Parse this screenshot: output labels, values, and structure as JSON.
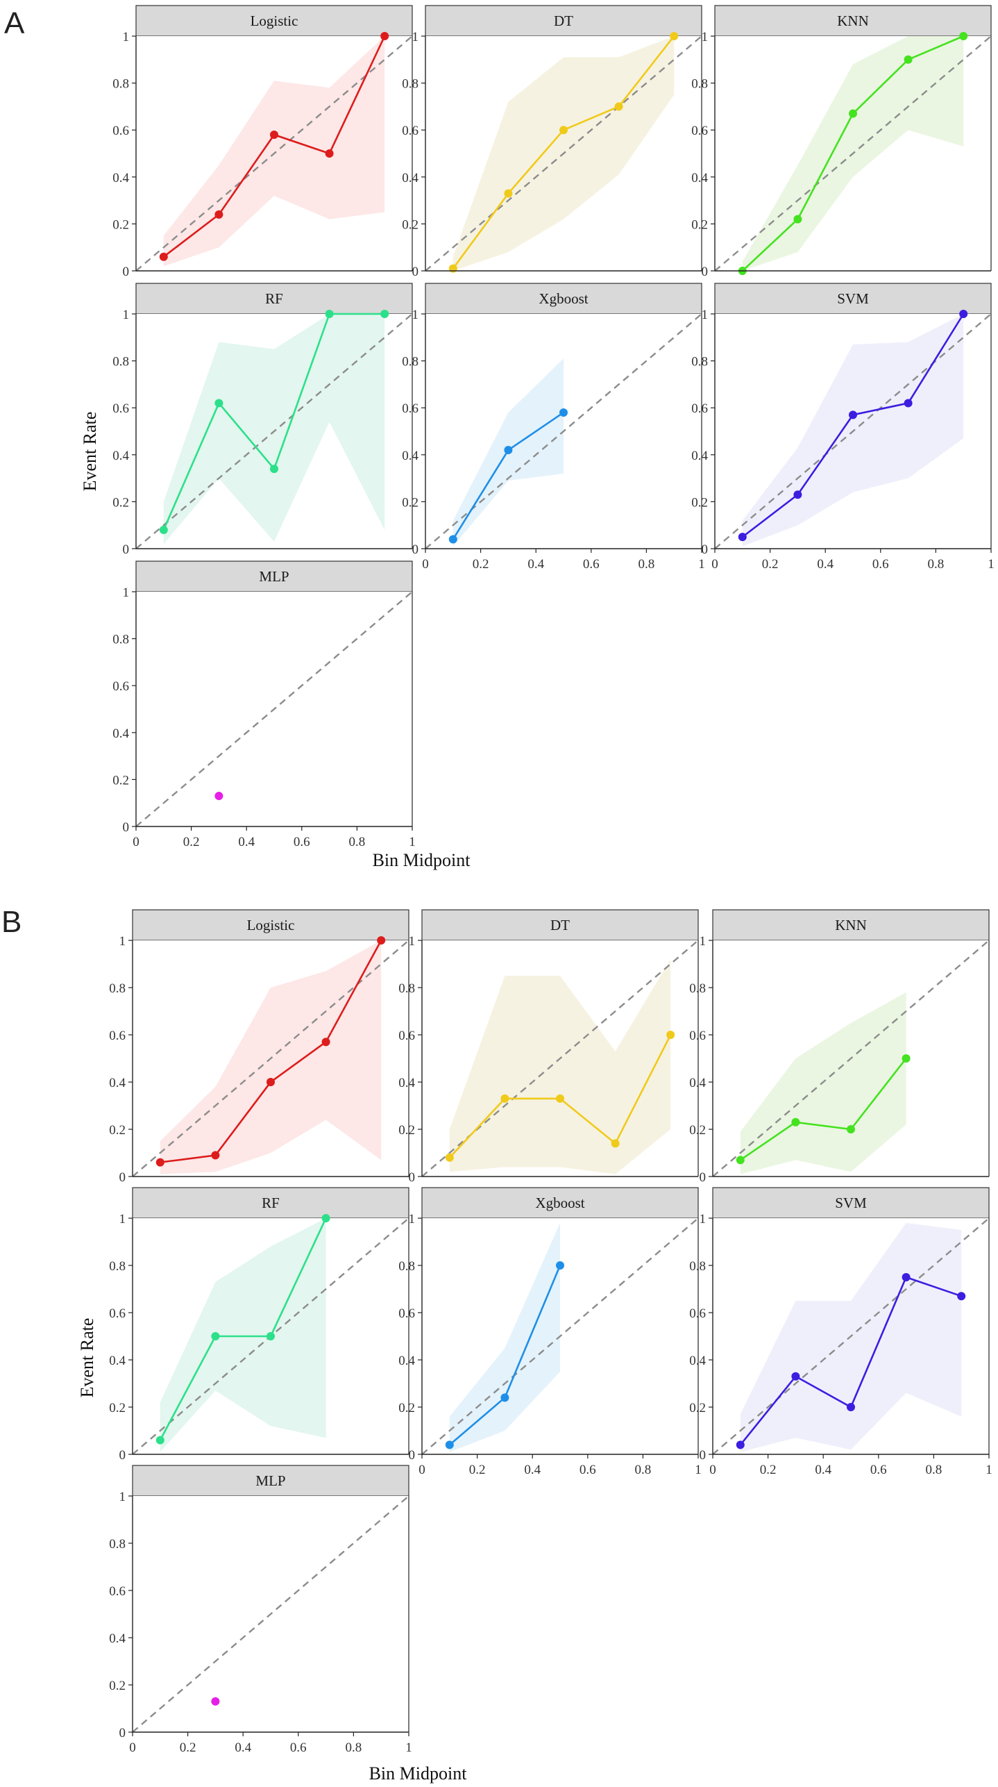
{
  "chart_data": [
    {
      "type": "line",
      "panel_label": "A",
      "xlabel": "Bin Midpoint",
      "ylabel": "Event Rate",
      "xlim": [
        0,
        1
      ],
      "ylim": [
        0,
        1
      ],
      "xticks": [
        "0",
        "0.2",
        "0.4",
        "0.6",
        "0.8",
        "1"
      ],
      "yticks": [
        "0",
        "0.2",
        "0.4",
        "0.6",
        "0.8",
        "1"
      ],
      "reference_line": "diagonal dashed y = x",
      "facets": [
        {
          "name": "Logistic",
          "color": "#dd1c1c",
          "band_color": "#fde3e3",
          "x": [
            0.1,
            0.3,
            0.5,
            0.7,
            0.9
          ],
          "y": [
            0.06,
            0.24,
            0.58,
            0.5,
            1.0
          ],
          "lower": [
            0.02,
            0.1,
            0.32,
            0.22,
            0.25
          ],
          "upper": [
            0.15,
            0.45,
            0.81,
            0.78,
            1.0
          ]
        },
        {
          "name": "DT",
          "color": "#f0ca1a",
          "band_color": "#f5f0dc",
          "x": [
            0.1,
            0.3,
            0.5,
            0.7,
            0.9
          ],
          "y": [
            0.01,
            0.33,
            0.6,
            0.7,
            1.0
          ],
          "lower": [
            0.0,
            0.08,
            0.22,
            0.41,
            0.75
          ],
          "upper": [
            0.06,
            0.72,
            0.91,
            0.91,
            1.0
          ]
        },
        {
          "name": "KNN",
          "color": "#44e21f",
          "band_color": "#e6f4dc",
          "x": [
            0.1,
            0.3,
            0.5,
            0.7,
            0.9
          ],
          "y": [
            0.0,
            0.22,
            0.67,
            0.9,
            1.0
          ],
          "lower": [
            0.0,
            0.08,
            0.4,
            0.6,
            0.53
          ],
          "upper": [
            0.04,
            0.45,
            0.88,
            1.0,
            1.0
          ]
        },
        {
          "name": "RF",
          "color": "#2ce08a",
          "band_color": "#def4ec",
          "x": [
            0.1,
            0.3,
            0.5,
            0.7,
            0.9
          ],
          "y": [
            0.08,
            0.62,
            0.34,
            1.0,
            1.0
          ],
          "lower": [
            0.02,
            0.3,
            0.03,
            0.54,
            0.08
          ],
          "upper": [
            0.2,
            0.88,
            0.85,
            1.0,
            1.0
          ]
        },
        {
          "name": "Xgboost",
          "color": "#1e8fe8",
          "band_color": "#dff0fa",
          "x": [
            0.1,
            0.3,
            0.5
          ],
          "y": [
            0.04,
            0.42,
            0.58
          ],
          "lower": [
            0.01,
            0.29,
            0.32
          ],
          "upper": [
            0.12,
            0.58,
            0.81
          ]
        },
        {
          "name": "SVM",
          "color": "#3b1ee0",
          "band_color": "#ececfb",
          "x": [
            0.1,
            0.3,
            0.5,
            0.7,
            0.9
          ],
          "y": [
            0.05,
            0.23,
            0.57,
            0.62,
            1.0
          ],
          "lower": [
            0.01,
            0.1,
            0.24,
            0.3,
            0.47
          ],
          "upper": [
            0.12,
            0.43,
            0.87,
            0.88,
            1.0
          ]
        },
        {
          "name": "MLP",
          "color": "#e61ee6",
          "band_color": "#fbe3fb",
          "x": [
            0.3
          ],
          "y": [
            0.13
          ],
          "lower": [],
          "upper": []
        }
      ]
    },
    {
      "type": "line",
      "panel_label": "B",
      "xlabel": "Bin Midpoint",
      "ylabel": "Event Rate",
      "xlim": [
        0,
        1
      ],
      "ylim": [
        0,
        1
      ],
      "xticks": [
        "0",
        "0.2",
        "0.4",
        "0.6",
        "0.8",
        "1"
      ],
      "yticks": [
        "0",
        "0.2",
        "0.4",
        "0.6",
        "0.8",
        "1"
      ],
      "reference_line": "diagonal dashed y = x",
      "facets": [
        {
          "name": "Logistic",
          "color": "#dd1c1c",
          "band_color": "#fde3e3",
          "x": [
            0.1,
            0.3,
            0.5,
            0.7,
            0.9
          ],
          "y": [
            0.06,
            0.09,
            0.4,
            0.57,
            1.0
          ],
          "lower": [
            0.01,
            0.02,
            0.1,
            0.24,
            0.07
          ],
          "upper": [
            0.15,
            0.38,
            0.8,
            0.87,
            1.0
          ]
        },
        {
          "name": "DT",
          "color": "#f0ca1a",
          "band_color": "#f5f0dc",
          "x": [
            0.1,
            0.3,
            0.5,
            0.7,
            0.9
          ],
          "y": [
            0.08,
            0.33,
            0.33,
            0.14,
            0.6
          ],
          "lower": [
            0.02,
            0.04,
            0.04,
            0.01,
            0.2
          ],
          "upper": [
            0.2,
            0.85,
            0.85,
            0.53,
            0.92
          ]
        },
        {
          "name": "KNN",
          "color": "#44e21f",
          "band_color": "#e6f4dc",
          "x": [
            0.1,
            0.3,
            0.5,
            0.7
          ],
          "y": [
            0.07,
            0.23,
            0.2,
            0.5
          ],
          "lower": [
            0.01,
            0.07,
            0.02,
            0.22
          ],
          "upper": [
            0.19,
            0.5,
            0.65,
            0.78
          ]
        },
        {
          "name": "RF",
          "color": "#2ce08a",
          "band_color": "#def4ec",
          "x": [
            0.1,
            0.3,
            0.5,
            0.7
          ],
          "y": [
            0.06,
            0.5,
            0.5,
            1.0
          ],
          "lower": [
            0.01,
            0.27,
            0.12,
            0.07
          ],
          "upper": [
            0.22,
            0.73,
            0.88,
            1.0
          ]
        },
        {
          "name": "Xgboost",
          "color": "#1e8fe8",
          "band_color": "#dff0fa",
          "x": [
            0.1,
            0.3,
            0.5
          ],
          "y": [
            0.04,
            0.24,
            0.8
          ],
          "lower": [
            0.01,
            0.1,
            0.35
          ],
          "upper": [
            0.16,
            0.45,
            0.98
          ]
        },
        {
          "name": "SVM",
          "color": "#3b1ee0",
          "band_color": "#ececfb",
          "x": [
            0.1,
            0.3,
            0.5,
            0.7,
            0.9
          ],
          "y": [
            0.04,
            0.33,
            0.2,
            0.75,
            0.67
          ],
          "lower": [
            0.01,
            0.07,
            0.02,
            0.26,
            0.16
          ],
          "upper": [
            0.17,
            0.65,
            0.65,
            0.98,
            0.95
          ]
        },
        {
          "name": "MLP",
          "color": "#e61ee6",
          "band_color": "#fbe3fb",
          "x": [
            0.3
          ],
          "y": [
            0.13
          ],
          "lower": [],
          "upper": []
        }
      ]
    }
  ]
}
